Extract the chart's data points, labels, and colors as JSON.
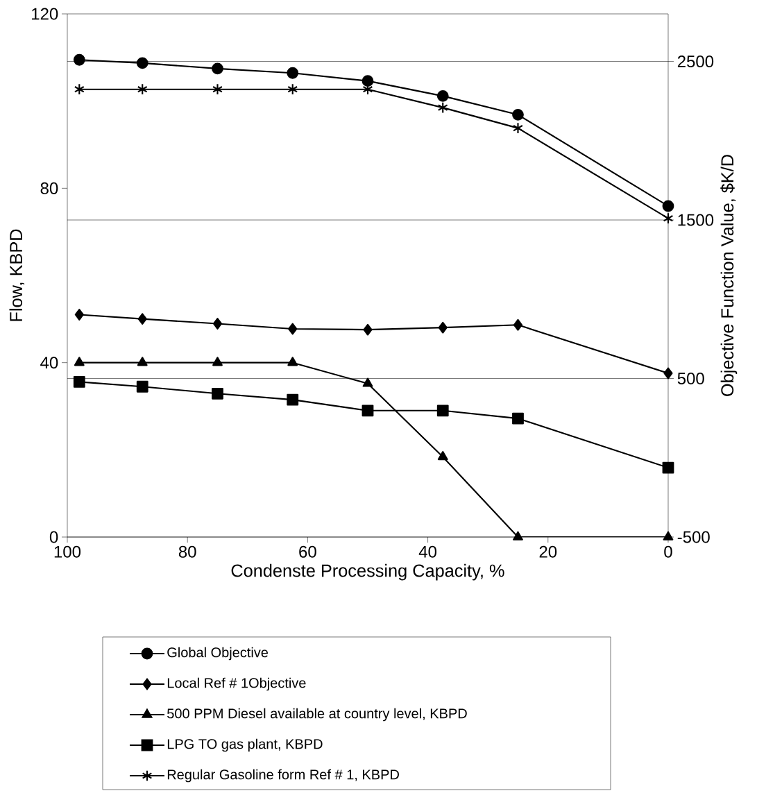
{
  "chart_data": {
    "type": "line",
    "xlabel": "Condenste Processing Capacity, %",
    "ylabel": "Flow, KBPD",
    "y2label": "Objective Function Value, $K/D",
    "x": [
      98,
      87.5,
      75,
      62.5,
      50,
      37.5,
      25,
      0
    ],
    "xlim": [
      100,
      0
    ],
    "xticks": [
      100,
      80,
      60,
      40,
      20,
      0
    ],
    "ylim": [
      0,
      120
    ],
    "yticks": [
      0,
      40,
      80,
      120
    ],
    "y2lim": [
      -500,
      2800
    ],
    "y2ticks": [
      -500,
      500,
      1500,
      2500
    ],
    "grid": "y2",
    "legend": "bottom",
    "line_style": "solid",
    "series": [
      {
        "name": "Global Objective",
        "color": "#000000",
        "axis": "y2",
        "marker": "circle",
        "values": [
          2510,
          2490,
          2455,
          2427,
          2377,
          2282,
          2164,
          1588
        ]
      },
      {
        "name": "Local Ref # 1Objective",
        "color": "#000000",
        "axis": "y2",
        "marker": "diamond",
        "values": [
          903,
          876,
          846,
          813,
          808,
          821,
          838,
          533
        ]
      },
      {
        "name": "500 PPM Diesel available at country level, KBPD",
        "color": "#000000",
        "axis": "y",
        "marker": "triangle",
        "values": [
          40,
          40,
          40,
          40,
          35.2,
          18.4,
          0,
          0
        ]
      },
      {
        "name": "LPG TO gas plant, KBPD",
        "color": "#000000",
        "axis": "y",
        "marker": "square",
        "values": [
          35.6,
          34.5,
          32.9,
          31.5,
          29,
          29,
          27.2,
          15.9
        ]
      },
      {
        "name": "Regular Gasoline form Ref # 1, KBPD",
        "color": "#000000",
        "axis": "y",
        "marker": "cross",
        "values": [
          102.7,
          102.7,
          102.7,
          102.7,
          102.7,
          98.5,
          93.8,
          73.1
        ]
      }
    ]
  }
}
